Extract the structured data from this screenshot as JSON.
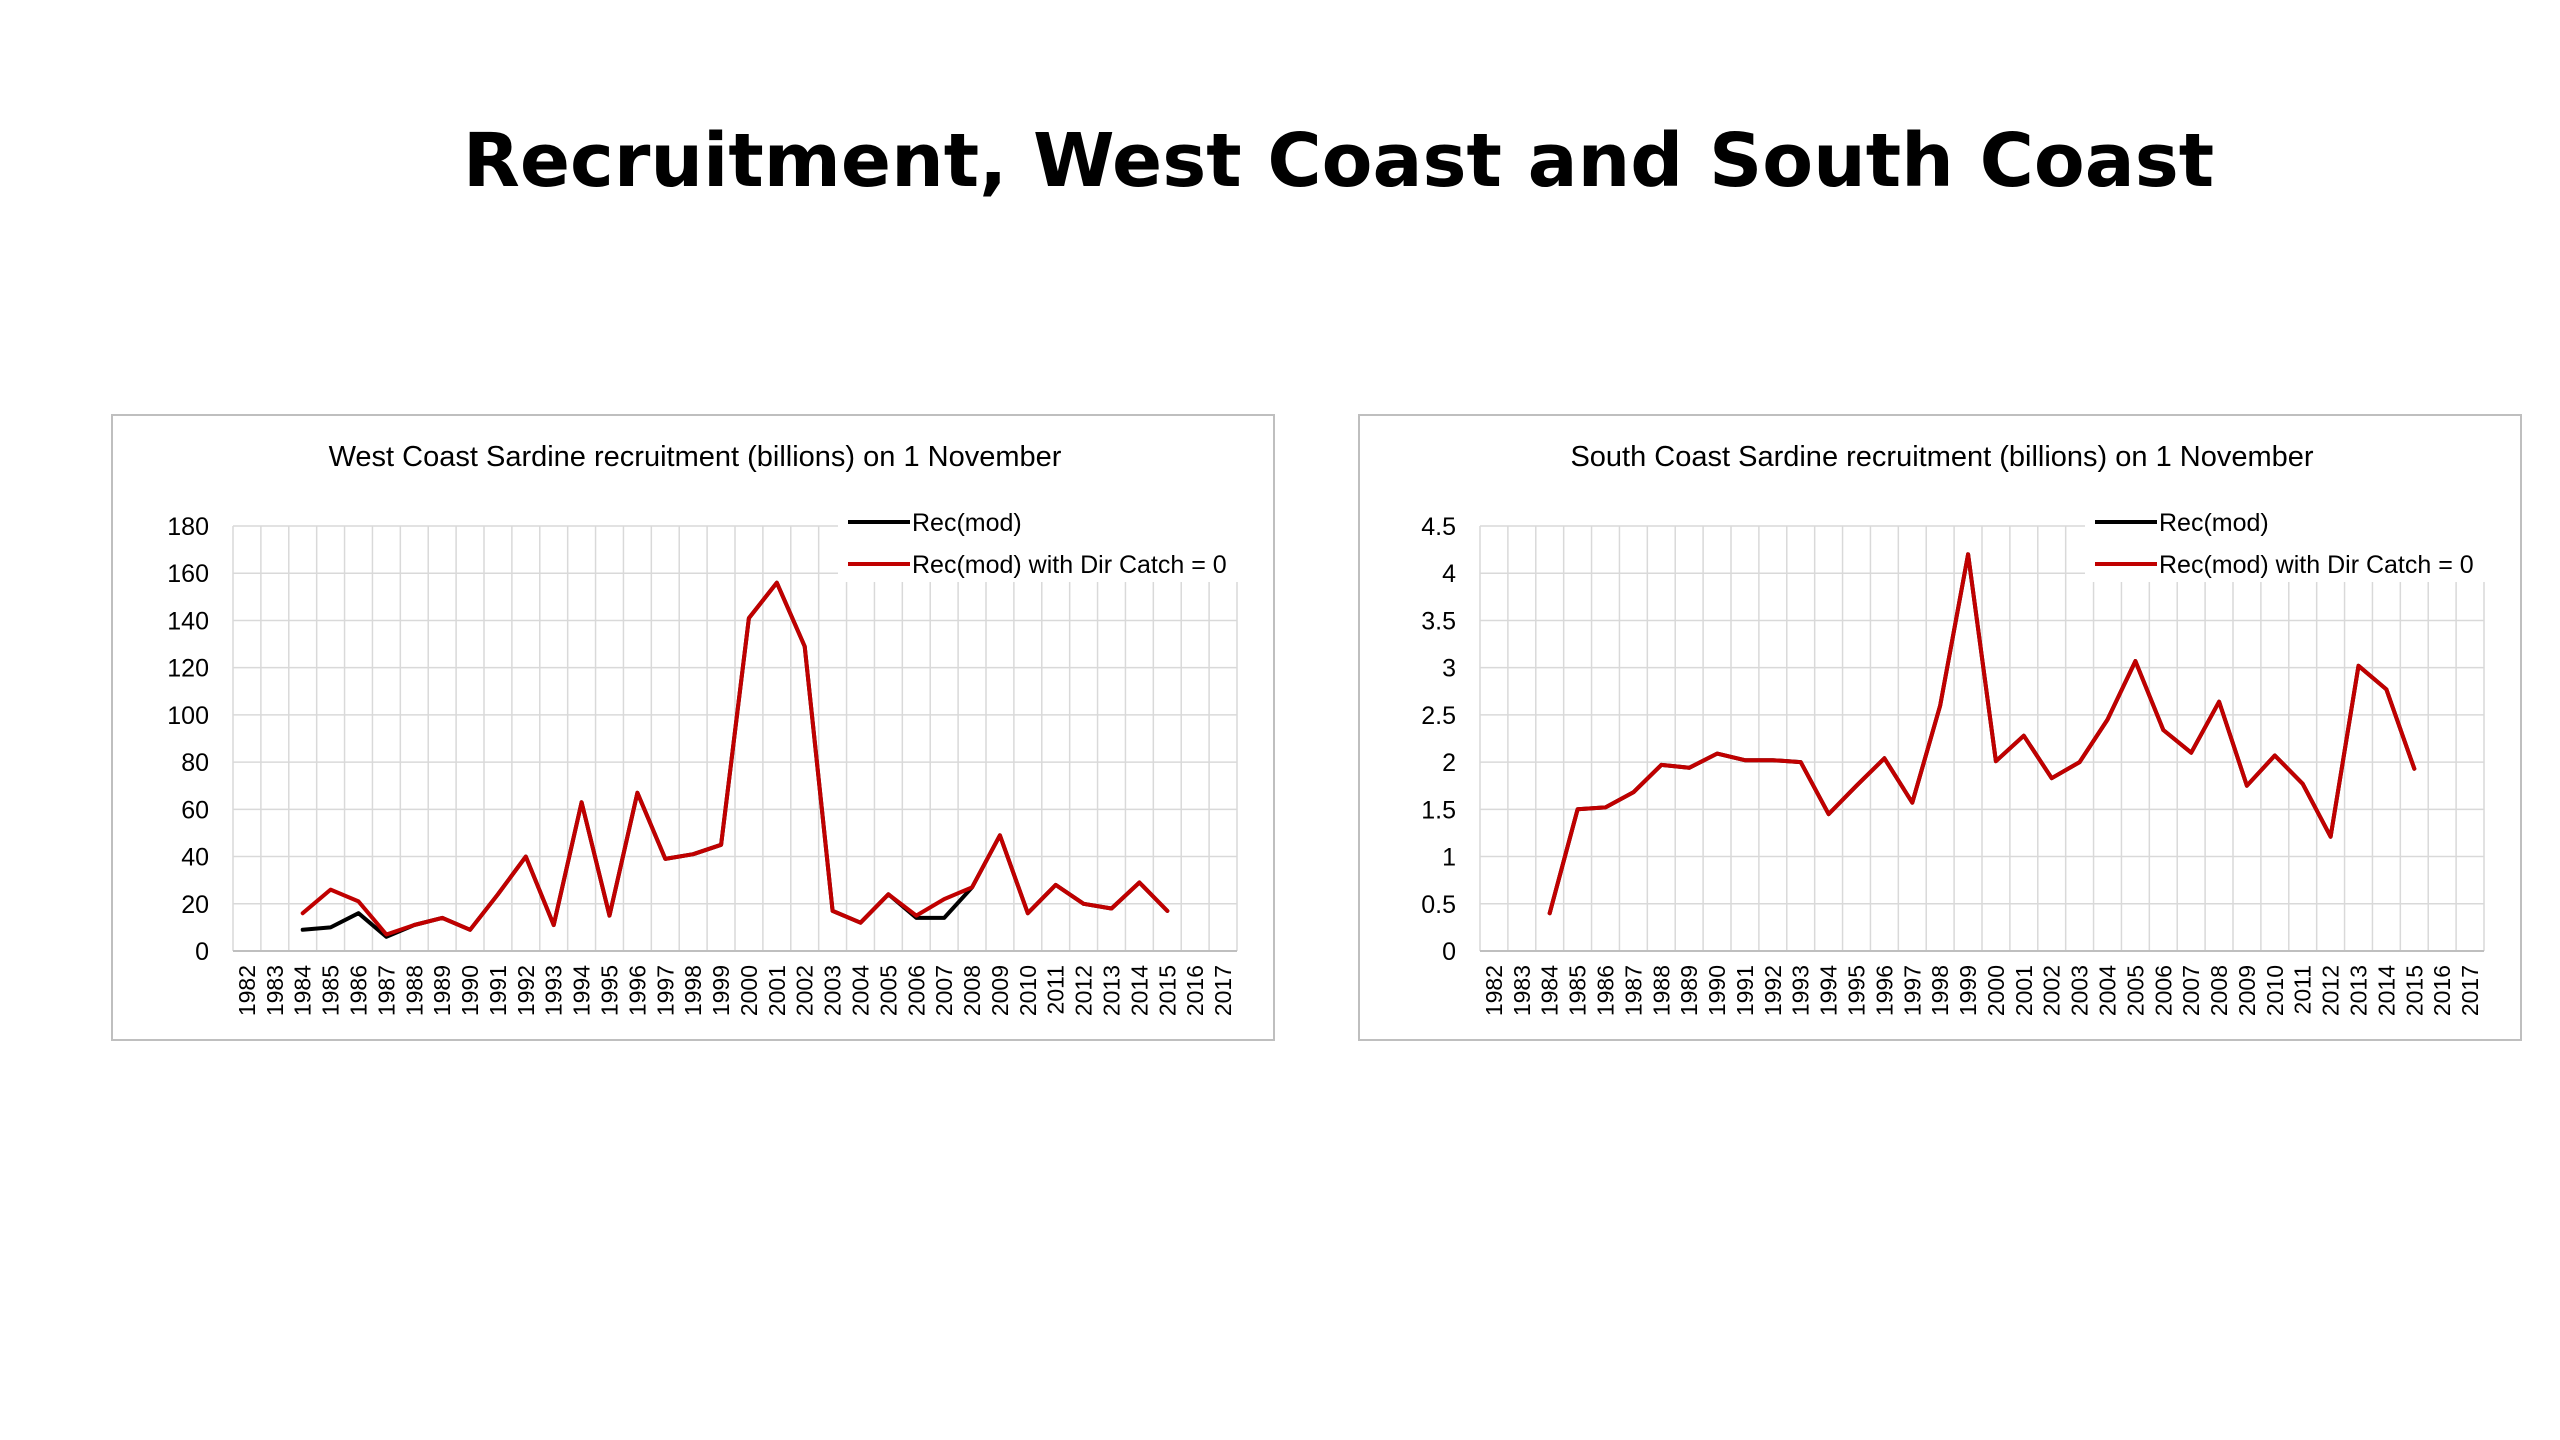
{
  "slide": {
    "title": "Recruitment, West Coast and South Coast"
  },
  "colors": {
    "rec_mod": "#000000",
    "rec_mod_dir_catch_0": "#c00000",
    "grid": "#d9d9d9",
    "border": "#bfbfbf"
  },
  "chart_data": [
    {
      "type": "line",
      "title": "West Coast Sardine recruitment (billions) on 1 November",
      "xlabel": "",
      "ylabel": "",
      "x": [
        "1982",
        "1983",
        "1984",
        "1985",
        "1986",
        "1987",
        "1988",
        "1989",
        "1990",
        "1991",
        "1992",
        "1993",
        "1994",
        "1995",
        "1996",
        "1997",
        "1998",
        "1999",
        "2000",
        "2001",
        "2002",
        "2003",
        "2004",
        "2005",
        "2006",
        "2007",
        "2008",
        "2009",
        "2010",
        "2011",
        "2012",
        "2013",
        "2014",
        "2015",
        "2016",
        "2017"
      ],
      "y_ticks": [
        "0",
        "20",
        "40",
        "60",
        "80",
        "100",
        "120",
        "140",
        "160",
        "180"
      ],
      "ylim": [
        0,
        180
      ],
      "grid": true,
      "legend": "top-right",
      "series": [
        {
          "name": "Rec(mod)",
          "color": "#000000",
          "values": [
            null,
            null,
            9,
            10,
            16,
            6,
            11,
            14,
            9,
            24,
            40,
            11,
            63,
            15,
            67,
            39,
            41,
            45,
            141,
            156,
            129,
            17,
            12,
            24,
            14,
            14,
            27,
            49,
            16,
            28,
            20,
            18,
            29,
            17,
            null,
            null
          ]
        },
        {
          "name": "Rec(mod) with Dir Catch = 0",
          "color": "#c00000",
          "values": [
            null,
            null,
            16,
            26,
            21,
            7,
            11,
            14,
            9,
            24,
            40,
            11,
            63,
            15,
            67,
            39,
            41,
            45,
            141,
            156,
            129,
            17,
            12,
            24,
            15,
            22,
            27,
            49,
            16,
            28,
            20,
            18,
            29,
            17,
            null,
            null
          ]
        }
      ]
    },
    {
      "type": "line",
      "title": "South Coast Sardine recruitment (billions) on 1 November",
      "xlabel": "",
      "ylabel": "",
      "x": [
        "1982",
        "1983",
        "1984",
        "1985",
        "1986",
        "1987",
        "1988",
        "1989",
        "1990",
        "1991",
        "1992",
        "1993",
        "1994",
        "1995",
        "1996",
        "1997",
        "1998",
        "1999",
        "2000",
        "2001",
        "2002",
        "2003",
        "2004",
        "2005",
        "2006",
        "2007",
        "2008",
        "2009",
        "2010",
        "2011",
        "2012",
        "2013",
        "2014",
        "2015",
        "2016",
        "2017"
      ],
      "y_ticks": [
        "0",
        "0.5",
        "1",
        "1.5",
        "2",
        "2.5",
        "3",
        "3.5",
        "4",
        "4.5"
      ],
      "ylim": [
        0,
        4.5
      ],
      "grid": true,
      "legend": "top-right",
      "series": [
        {
          "name": "Rec(mod)",
          "color": "#000000",
          "values": [
            null,
            null,
            0.4,
            1.5,
            1.52,
            1.68,
            1.97,
            1.94,
            2.09,
            2.02,
            2.02,
            2.0,
            1.45,
            1.75,
            2.04,
            1.57,
            2.6,
            4.2,
            2.01,
            2.28,
            1.83,
            2.0,
            2.45,
            3.07,
            2.34,
            2.1,
            2.64,
            1.75,
            2.07,
            1.77,
            1.21,
            3.02,
            2.77,
            1.93,
            null,
            null
          ]
        },
        {
          "name": "Rec(mod) with Dir Catch = 0",
          "color": "#c00000",
          "values": [
            null,
            null,
            0.4,
            1.5,
            1.52,
            1.68,
            1.97,
            1.94,
            2.09,
            2.02,
            2.02,
            2.0,
            1.45,
            1.75,
            2.04,
            1.57,
            2.6,
            4.2,
            2.01,
            2.28,
            1.83,
            2.0,
            2.45,
            3.07,
            2.34,
            2.1,
            2.64,
            1.75,
            2.07,
            1.77,
            1.21,
            3.02,
            2.77,
            1.93,
            null,
            null
          ]
        }
      ]
    }
  ]
}
